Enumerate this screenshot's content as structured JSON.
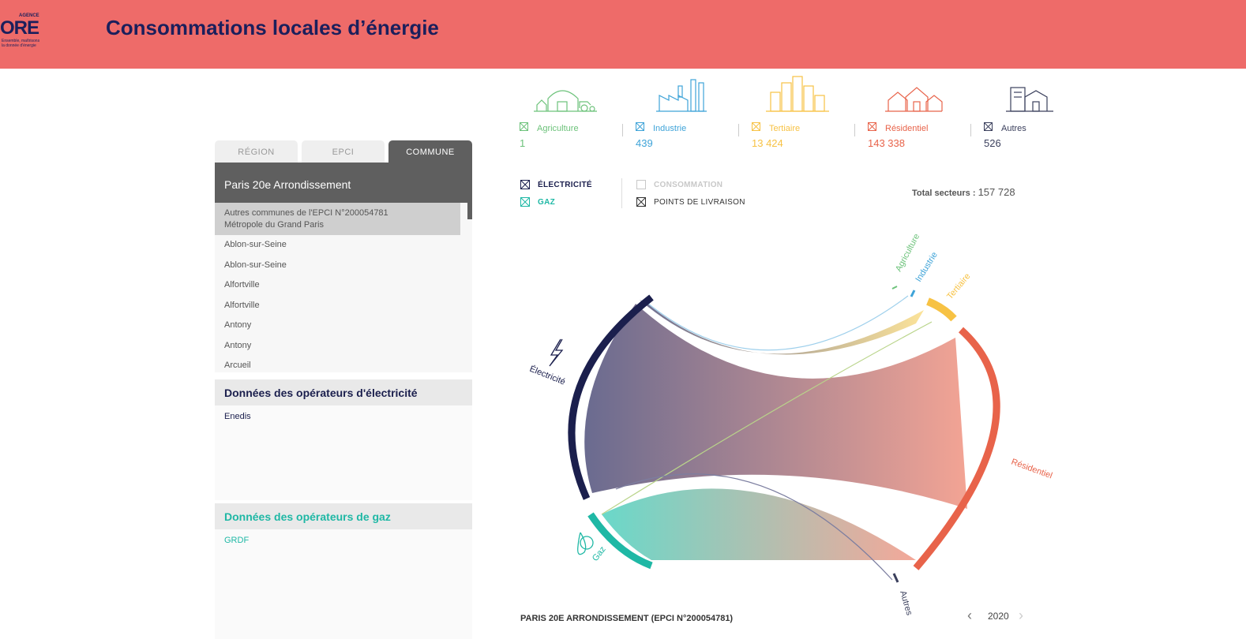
{
  "header": {
    "logo_agence": "AGENCE",
    "logo_ore": "ORE",
    "logo_tagline": "Ensemble, maîtrisons la donnée d'énergie",
    "title": "Consommations locales d’énergie"
  },
  "tabs": [
    {
      "label": "RÉGION"
    },
    {
      "label": "EPCI"
    },
    {
      "label": "COMMUNE"
    }
  ],
  "selected_commune": "Paris 20e Arrondissement",
  "commune_list": {
    "highlight_line1": "Autres communes de l'EPCI N°200054781",
    "highlight_line2": "Métropole du Grand Paris",
    "items": [
      "Ablon-sur-Seine",
      "Ablon-sur-Seine",
      "Alfortville",
      "Alfortville",
      "Antony",
      "Antony",
      "Arcueil"
    ]
  },
  "electricity_operators": {
    "title": "Données des opérateurs d'électricité",
    "items": [
      "Enedis"
    ]
  },
  "gas_operators": {
    "title": "Données des opérateurs de gaz",
    "items": [
      "GRDF"
    ]
  },
  "sectors": [
    {
      "label": "Agriculture",
      "value": "1",
      "color": "#6cc27a",
      "icon": "farm-icon"
    },
    {
      "label": "Industrie",
      "value": "439",
      "color": "#3ea3d8",
      "icon": "factory-icon"
    },
    {
      "label": "Tertiaire",
      "value": "13 424",
      "color": "#f7c244",
      "icon": "city-icon"
    },
    {
      "label": "Résidentiel",
      "value": "143 338",
      "color": "#e8634a",
      "icon": "houses-icon"
    },
    {
      "label": "Autres",
      "value": "526",
      "color": "#3a3f5c",
      "icon": "building-icon"
    }
  ],
  "filters": {
    "electricite": "ÉLECTRICITÉ",
    "gaz": "GAZ",
    "consommation": "CONSOMMATION",
    "points_livraison": "POINTS DE LIVRAISON"
  },
  "total": {
    "label": "Total secteurs :",
    "value": "157 728"
  },
  "chart_data": {
    "type": "chord",
    "energies": [
      {
        "name": "Électricité",
        "color": "#1b1f4d"
      },
      {
        "name": "Gaz",
        "color": "#1fb8a5"
      }
    ],
    "sectors": [
      "Agriculture",
      "Industrie",
      "Tertiaire",
      "Résidentiel",
      "Autres"
    ],
    "arc_labels": [
      "Électricité",
      "Gaz",
      "Agriculture",
      "Industrie",
      "Tertiaire",
      "Résidentiel",
      "Autres"
    ]
  },
  "footer": {
    "commune_name": "PARIS 20E ARRONDISSEMENT (EPCI N°200054781)",
    "year": "2020"
  }
}
